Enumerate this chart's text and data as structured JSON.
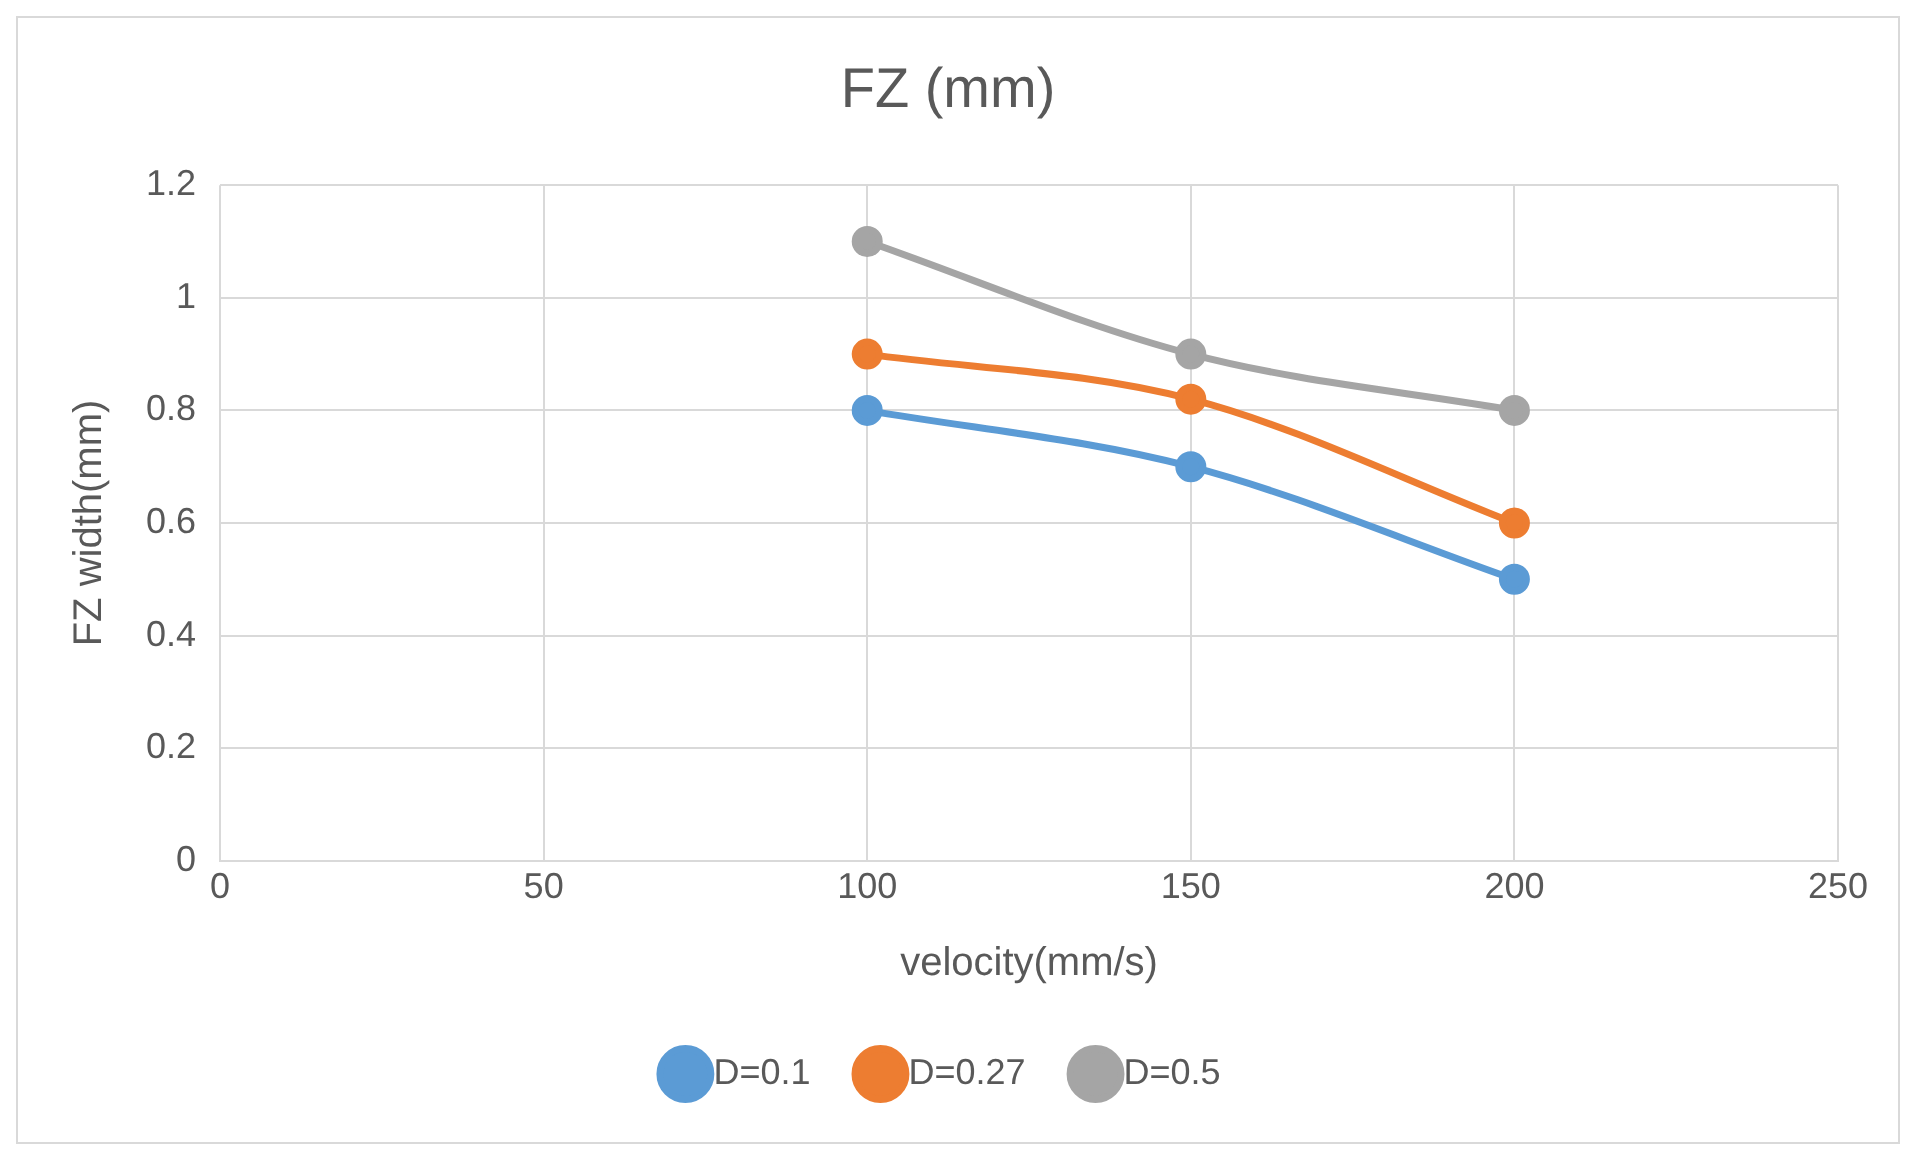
{
  "chart_data": {
    "type": "line",
    "title": "FZ (mm)",
    "xlabel": "velocity(mm/s)",
    "ylabel": "FZ width(mm)",
    "x": [
      100,
      150,
      200
    ],
    "series": [
      {
        "name": "D=0.1",
        "color": "#5b9bd5",
        "values": [
          0.8,
          0.7,
          0.5
        ]
      },
      {
        "name": "D=0.27",
        "color": "#ed7d31",
        "values": [
          0.9,
          0.82,
          0.6
        ]
      },
      {
        "name": "D=0.5",
        "color": "#a5a5a5",
        "values": [
          1.1,
          0.9,
          0.8
        ]
      }
    ],
    "xlim": [
      0,
      250
    ],
    "xticks": [
      0,
      50,
      100,
      150,
      200,
      250
    ],
    "ylim": [
      0,
      1.2
    ],
    "yticks": [
      0,
      0.2,
      0.4,
      0.6,
      0.8,
      1,
      1.2
    ],
    "grid": true,
    "legend": "bottom",
    "marker": "circle",
    "line_style": "solid"
  }
}
